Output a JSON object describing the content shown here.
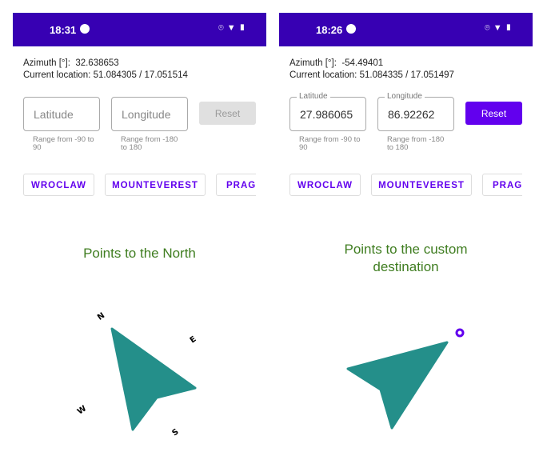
{
  "colors": {
    "status_bar": "#3700b3",
    "accent": "#6200ee",
    "arrow": "#248f8a",
    "title": "#3f7d20",
    "reset_disabled": "#e0e0e0"
  },
  "screens": [
    {
      "time": "18:31",
      "azimuth_label": "Azimuth [°]:",
      "azimuth": "32.638653",
      "location_label": "Current location:",
      "location": "51.084305 / 17.051514",
      "latitude": {
        "label": "Latitude",
        "value": "",
        "placeholder": "Latitude",
        "helper": "Range from -90 to 90"
      },
      "longitude": {
        "label": "Longitude",
        "value": "",
        "placeholder": "Longitude",
        "helper": "Range from -180 to 180"
      },
      "reset": "Reset",
      "reset_enabled": false,
      "chips": [
        "WROCLAW",
        "MOUNTEVEREST",
        "PRAGUE"
      ],
      "title": "Points to the North",
      "compass_labels": [
        "N",
        "E",
        "S",
        "W"
      ]
    },
    {
      "time": "18:26",
      "azimuth_label": "Azimuth [°]:",
      "azimuth": "-54.49401",
      "location_label": "Current location:",
      "location": "51.084335 / 17.051497",
      "latitude": {
        "label": "Latitude",
        "value": "27.986065",
        "placeholder": "",
        "helper": "Range from -90 to 90"
      },
      "longitude": {
        "label": "Longitude",
        "value": "86.92262",
        "placeholder": "",
        "helper": "Range from -180 to 180"
      },
      "reset": "Reset",
      "reset_enabled": true,
      "chips": [
        "WROCLAW",
        "MOUNTEVEREST",
        "PRAGUE"
      ],
      "title": "Points to the custom destination"
    }
  ]
}
